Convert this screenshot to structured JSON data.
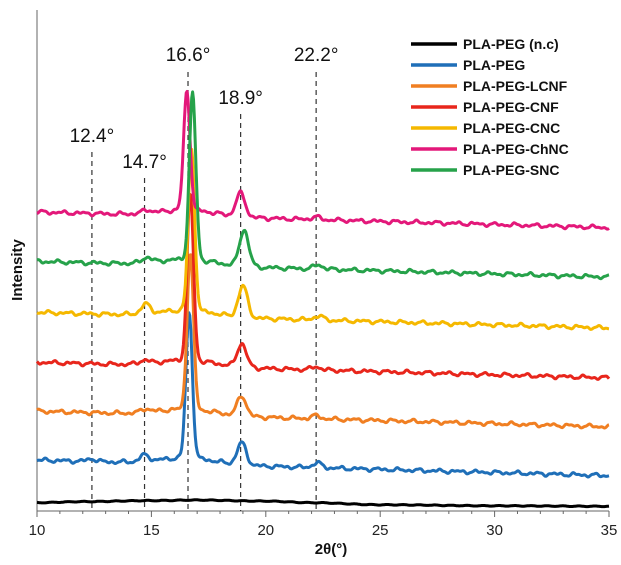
{
  "chart_data": {
    "type": "line",
    "title": "",
    "xlabel": "2θ(°)",
    "ylabel": "Intensity",
    "xlim": [
      10,
      35
    ],
    "x_ticks": [
      "10",
      "15",
      "20",
      "25",
      "30",
      "35"
    ],
    "y_ticks_shown": false,
    "grid": false,
    "legend_position": "top-right",
    "peak_markers": [
      {
        "x": 12.4,
        "label": "12.4°"
      },
      {
        "x": 14.7,
        "label": "14.7°"
      },
      {
        "x": 16.6,
        "label": "16.6°"
      },
      {
        "x": 18.9,
        "label": "18.9°"
      },
      {
        "x": 22.2,
        "label": "22.2°"
      }
    ],
    "series": [
      {
        "name": "PLA-PEG (n.c)",
        "color": "#000000",
        "offset": 0.1,
        "main_peak_x": 16.6,
        "peaks": [],
        "baseline": [
          [
            10,
            0.16
          ],
          [
            12,
            0.18
          ],
          [
            15,
            0.2
          ],
          [
            17,
            0.21
          ],
          [
            20,
            0.19
          ],
          [
            22,
            0.16
          ],
          [
            25,
            0.12
          ],
          [
            30,
            0.1
          ],
          [
            35,
            0.09
          ]
        ]
      },
      {
        "name": "PLA-PEG",
        "color": "#1f6fb8",
        "offset": 0.98,
        "main_peak_x": 16.65,
        "peaks": [
          {
            "x": 16.65,
            "h": 2.8
          },
          {
            "x": 18.95,
            "h": 0.42
          },
          {
            "x": 14.7,
            "h": 0.12
          },
          {
            "x": 22.25,
            "h": 0.09
          },
          {
            "x": 12.4,
            "h": 0.05
          }
        ]
      },
      {
        "name": "PLA-PEG-LCNF",
        "color": "#f07f22",
        "offset": 1.92,
        "main_peak_x": 16.7,
        "peaks": [
          {
            "x": 16.7,
            "h": 3.0
          },
          {
            "x": 18.95,
            "h": 0.38
          },
          {
            "x": 14.75,
            "h": 0.07
          },
          {
            "x": 22.2,
            "h": 0.06
          }
        ]
      },
      {
        "name": "PLA-PEG-CNF",
        "color": "#e8261c",
        "offset": 2.86,
        "main_peak_x": 16.7,
        "peaks": [
          {
            "x": 16.7,
            "h": 3.2
          },
          {
            "x": 18.95,
            "h": 0.45
          },
          {
            "x": 14.7,
            "h": 0.07
          },
          {
            "x": 22.2,
            "h": 0.06
          }
        ]
      },
      {
        "name": "PLA-PEG-CNC",
        "color": "#f5b800",
        "offset": 3.82,
        "main_peak_x": 16.75,
        "peaks": [
          {
            "x": 16.75,
            "h": 3.1
          },
          {
            "x": 19.0,
            "h": 0.6
          },
          {
            "x": 14.75,
            "h": 0.18
          },
          {
            "x": 22.3,
            "h": 0.08
          }
        ]
      },
      {
        "name": "PLA-PEG-SNC",
        "color": "#26a24a",
        "offset": 4.8,
        "main_peak_x": 16.8,
        "peaks": [
          {
            "x": 16.8,
            "h": 3.2
          },
          {
            "x": 19.05,
            "h": 0.7
          },
          {
            "x": 14.8,
            "h": 0.1
          },
          {
            "x": 22.3,
            "h": 0.08
          }
        ]
      },
      {
        "name": "PLA-PEG-ChNC",
        "color": "#e3187a",
        "offset": 5.75,
        "main_peak_x": 16.55,
        "peaks": [
          {
            "x": 16.55,
            "h": 2.28
          },
          {
            "x": 18.9,
            "h": 0.45
          },
          {
            "x": 14.8,
            "h": 0.06
          },
          {
            "x": 22.2,
            "h": 0.05
          }
        ]
      }
    ],
    "legend_order": [
      "PLA-PEG (n.c)",
      "PLA-PEG",
      "PLA-PEG-LCNF",
      "PLA-PEG-CNF",
      "PLA-PEG-CNC",
      "PLA-PEG-ChNC",
      "PLA-PEG-SNC"
    ]
  }
}
